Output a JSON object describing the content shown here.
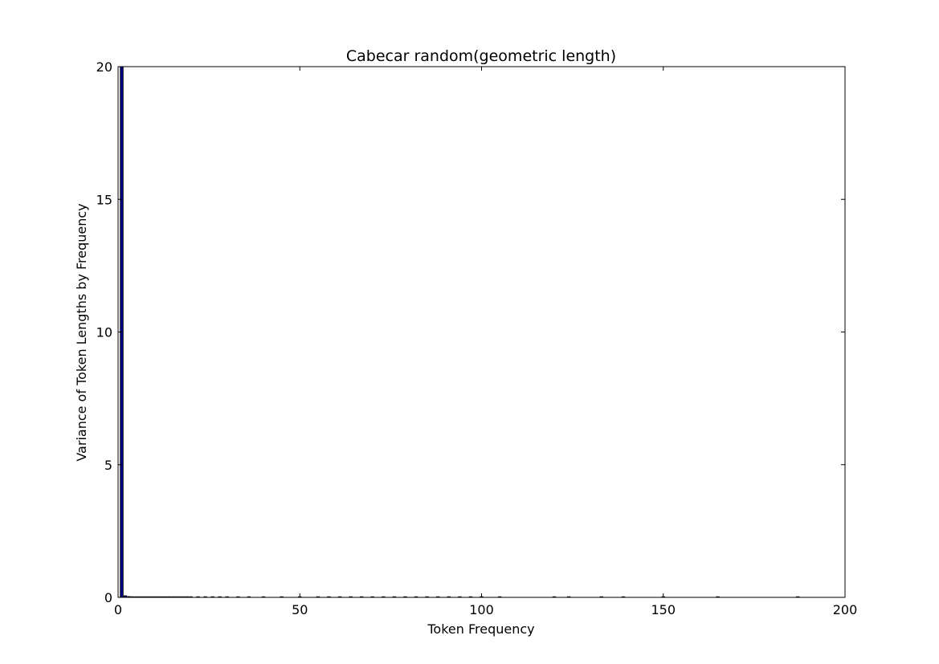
{
  "chart_data": {
    "type": "bar",
    "title": "Cabecar random(geometric length)",
    "xlabel": "Token Frequency",
    "ylabel": "Variance of Token Lengths by Frequency",
    "xlim": [
      0,
      200
    ],
    "ylim": [
      0,
      20
    ],
    "xticks": [
      0,
      50,
      100,
      150,
      200
    ],
    "yticks": [
      0,
      5,
      10,
      15,
      20
    ],
    "grid": false,
    "colors": {
      "bar_fill": "#000080",
      "bar_edge": "#000000"
    },
    "x": [
      1,
      2,
      3,
      4,
      5,
      6,
      7,
      8,
      9,
      10,
      11,
      12,
      13,
      14,
      15,
      16,
      17,
      18,
      19,
      20,
      22,
      24,
      26,
      28,
      30,
      33,
      36,
      40,
      45,
      50,
      55,
      58,
      61,
      64,
      67,
      70,
      73,
      76,
      79,
      82,
      85,
      88,
      91,
      94,
      97,
      100,
      105,
      120,
      124,
      133,
      139,
      150,
      165,
      187
    ],
    "values": [
      20,
      0.06,
      0.03,
      0.02,
      0.02,
      0.01,
      0.01,
      0.01,
      0,
      0,
      0,
      0,
      0,
      0,
      0,
      0,
      0,
      0,
      0,
      0,
      0,
      0,
      0,
      0,
      0,
      0,
      0,
      0,
      0,
      0,
      0,
      0,
      0,
      0,
      0,
      0,
      0,
      0,
      0,
      0,
      0,
      0,
      0,
      0,
      0,
      0,
      0,
      0,
      0,
      0,
      0,
      0,
      0,
      0
    ]
  }
}
